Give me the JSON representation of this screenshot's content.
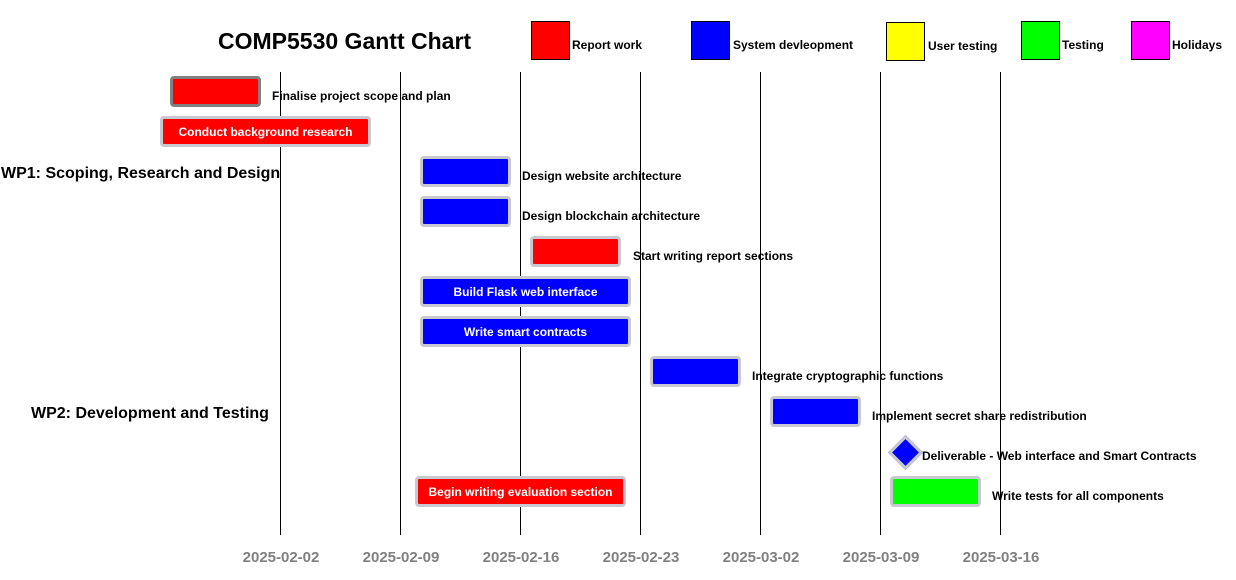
{
  "chart": {
    "title": "COMP5530 Gantt Chart"
  },
  "legend": [
    {
      "label": "Report work",
      "color": "#ff0000"
    },
    {
      "label": "System devleopment",
      "color": "#0000ff"
    },
    {
      "label": "User testing",
      "color": "#ffff00"
    },
    {
      "label": "Testing",
      "color": "#00ff00"
    },
    {
      "label": "Holidays",
      "color": "#ff00ff"
    }
  ],
  "dates": [
    "2025-02-02",
    "2025-02-09",
    "2025-02-16",
    "2025-02-23",
    "2025-03-02",
    "2025-03-09",
    "2025-03-16"
  ],
  "work_packages": [
    {
      "label": "WP1: Scoping, Research and Design"
    },
    {
      "label": "WP2: Development and Testing"
    }
  ],
  "tasks": [
    {
      "label": "Finalise project scope and plan",
      "category": "Report work",
      "color": "#ff0000",
      "start": "2025-01-30",
      "end": "2025-02-03",
      "label_position": "outside"
    },
    {
      "label": "Conduct background research",
      "category": "Report work",
      "color": "#ff0000",
      "start": "2025-01-29",
      "end": "2025-02-07",
      "label_position": "inside"
    },
    {
      "label": "Design website architecture",
      "category": "System devleopment",
      "color": "#0000ff",
      "start": "2025-02-10",
      "end": "2025-02-14",
      "label_position": "outside"
    },
    {
      "label": "Design blockchain architecture",
      "category": "System devleopment",
      "color": "#0000ff",
      "start": "2025-02-10",
      "end": "2025-02-14",
      "label_position": "outside"
    },
    {
      "label": "Start writing report sections",
      "category": "Report work",
      "color": "#ff0000",
      "start": "2025-02-17",
      "end": "2025-02-21",
      "label_position": "outside"
    },
    {
      "label": "Build Flask web interface",
      "category": "System devleopment",
      "color": "#0000ff",
      "start": "2025-02-10",
      "end": "2025-02-21",
      "label_position": "inside"
    },
    {
      "label": "Write smart contracts",
      "category": "System devleopment",
      "color": "#0000ff",
      "start": "2025-02-10",
      "end": "2025-02-21",
      "label_position": "inside"
    },
    {
      "label": "Integrate cryptographic functions",
      "category": "System devleopment",
      "color": "#0000ff",
      "start": "2025-02-24",
      "end": "2025-02-28",
      "label_position": "outside"
    },
    {
      "label": "Implement secret share redistribution",
      "category": "System devleopment",
      "color": "#0000ff",
      "start": "2025-03-03",
      "end": "2025-03-07",
      "label_position": "outside"
    },
    {
      "label": "Deliverable - Web interface and Smart Contracts",
      "category": "System devleopment",
      "color": "#0000ff",
      "milestone": true,
      "date": "2025-03-10",
      "label_position": "outside"
    },
    {
      "label": "Begin writing evaluation section",
      "category": "Report work",
      "color": "#ff0000",
      "start": "2025-02-10",
      "end": "2025-02-21",
      "label_position": "inside"
    },
    {
      "label": "Write tests for all components",
      "category": "Testing",
      "color": "#00ff00",
      "start": "2025-03-10",
      "end": "2025-03-14",
      "label_position": "outside"
    }
  ]
}
